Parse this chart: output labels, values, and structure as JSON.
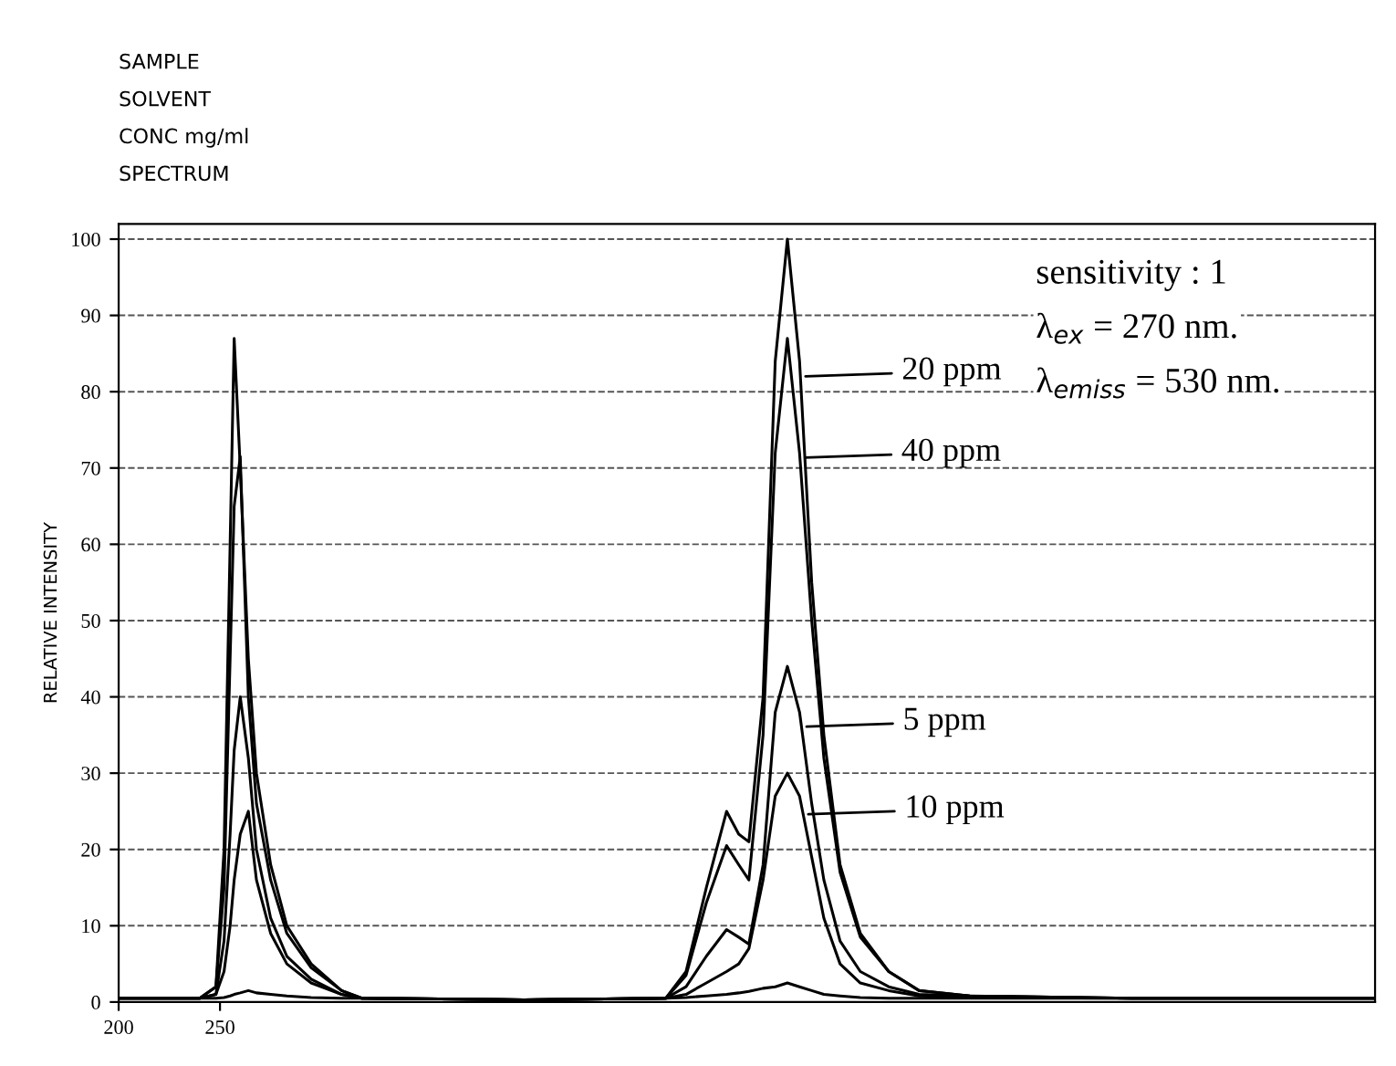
{
  "chart_data": {
    "type": "line",
    "ylabel": "RELATIVE INTENSITY",
    "x": [
      200,
      240,
      248,
      252,
      255,
      257,
      260,
      264,
      268,
      275,
      283,
      295,
      310,
      320,
      400,
      470,
      480,
      490,
      500,
      506,
      511,
      518,
      524,
      530,
      536,
      542,
      548,
      556,
      566,
      580,
      595,
      620,
      700,
      820
    ],
    "series": [
      {
        "name": "20 ppm",
        "color": "#000000",
        "values": [
          0.5,
          0.5,
          2,
          20,
          60,
          87,
          70,
          45,
          30,
          18,
          10,
          5,
          1.5,
          0.5,
          0.3,
          0.5,
          4,
          15,
          25,
          22,
          21,
          40,
          84,
          100,
          84,
          55,
          35,
          18,
          9,
          4,
          1.5,
          0.8,
          0.5,
          0.5
        ]
      },
      {
        "name": "40 ppm",
        "color": "#000000",
        "values": [
          0.5,
          0.5,
          2,
          15,
          45,
          65,
          71.5,
          40,
          26,
          16,
          9,
          4.5,
          1.5,
          0.5,
          0.3,
          0.5,
          3.5,
          13,
          20.5,
          18,
          16,
          35,
          72,
          87,
          72,
          50,
          32,
          17,
          8.5,
          4,
          1.5,
          0.8,
          0.5,
          0.5
        ]
      },
      {
        "name": "5 ppm",
        "color": "#000000",
        "values": [
          0.5,
          0.5,
          1,
          8,
          22,
          33,
          40,
          32,
          20,
          11,
          6,
          3,
          1,
          0.5,
          0.3,
          0.5,
          2,
          6,
          9.5,
          8.5,
          7.6,
          18,
          38,
          44,
          38,
          26,
          16,
          8,
          4,
          2,
          1,
          0.8,
          0.5,
          0.5
        ]
      },
      {
        "name": "10 ppm",
        "color": "#000000",
        "values": [
          0.5,
          0.5,
          1,
          4,
          10,
          16,
          22,
          25,
          16,
          9,
          5,
          2.5,
          1,
          0.5,
          0.3,
          0.5,
          1,
          2.5,
          4,
          5,
          7,
          16,
          27,
          30,
          27,
          19,
          11,
          5,
          2.5,
          1.5,
          0.8,
          0.6,
          0.5,
          0.5
        ]
      },
      {
        "color": "#000000",
        "values": [
          0.5,
          0.5,
          0.5,
          0.6,
          0.8,
          1,
          1.2,
          1.5,
          1.2,
          1,
          0.8,
          0.6,
          0.5,
          0.5,
          0.3,
          0.5,
          0.6,
          0.8,
          1,
          1.2,
          1.4,
          1.8,
          2,
          2.5,
          2,
          1.5,
          1,
          0.8,
          0.6,
          0.5,
          0.5,
          0.5,
          0.5,
          0.5
        ]
      }
    ],
    "xlim": [
      200,
      820
    ],
    "xticks": [
      200,
      250
    ],
    "ylim": [
      0,
      102
    ],
    "yticks": [
      0,
      10,
      20,
      30,
      40,
      50,
      60,
      70,
      80,
      90,
      100
    ],
    "grid": "y",
    "legend": "right",
    "marker": "none",
    "line_style": "solid",
    "annotations": [
      "SAMPLE",
      "SOLVENT",
      "CONC mg/ml",
      "SPECTRUM",
      "sensitivity : 1",
      "λ$_{ex}$ = 270 nm.",
      "λ$_{emiss}$ = 530 nm."
    ]
  }
}
